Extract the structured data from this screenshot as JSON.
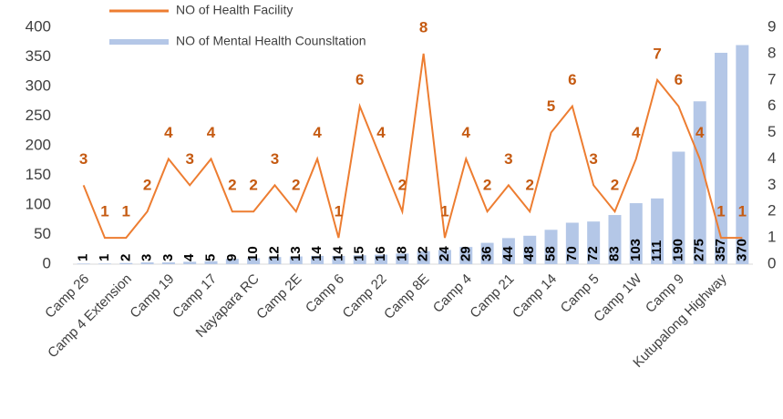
{
  "chart_data": {
    "type": "bar-line",
    "categories": [
      "Camp 26",
      null,
      "Camp 4 Extension",
      null,
      "Camp 19",
      null,
      "Camp 17",
      null,
      "Nayapara RC",
      null,
      "Camp 2E",
      null,
      "Camp 6",
      null,
      "Camp 22",
      null,
      "Camp 8E",
      null,
      "Camp 4",
      null,
      "Camp 21",
      null,
      "Camp 14",
      null,
      "Camp 5",
      null,
      "Camp 1W",
      null,
      "Camp 9",
      null,
      "Kutupalong Highway",
      null
    ],
    "series": [
      {
        "name": "NO of Health Facility",
        "type": "line",
        "axis": "y2",
        "color": "#ed7d31",
        "values": [
          3,
          1,
          1,
          2,
          4,
          3,
          4,
          2,
          2,
          3,
          2,
          4,
          1,
          6,
          4,
          2,
          8,
          1,
          4,
          2,
          3,
          2,
          5,
          6,
          3,
          2,
          4,
          7,
          6,
          4,
          1,
          1
        ]
      },
      {
        "name": "NO of Mental Health Counsltation",
        "type": "bar",
        "axis": "y",
        "color": "#b4c7e7",
        "values": [
          1,
          1,
          2,
          3,
          3,
          4,
          5,
          9,
          10,
          12,
          13,
          14,
          14,
          15,
          16,
          18,
          22,
          24,
          29,
          36,
          44,
          48,
          58,
          70,
          72,
          83,
          103,
          111,
          190,
          275,
          357,
          370
        ]
      }
    ],
    "ylim": [
      0,
      400
    ],
    "yticks": [
      0,
      50,
      100,
      150,
      200,
      250,
      300,
      350,
      400
    ],
    "y2lim": [
      0,
      9
    ],
    "y2ticks": [
      0,
      1,
      2,
      3,
      4,
      5,
      6,
      7,
      8,
      9
    ]
  }
}
